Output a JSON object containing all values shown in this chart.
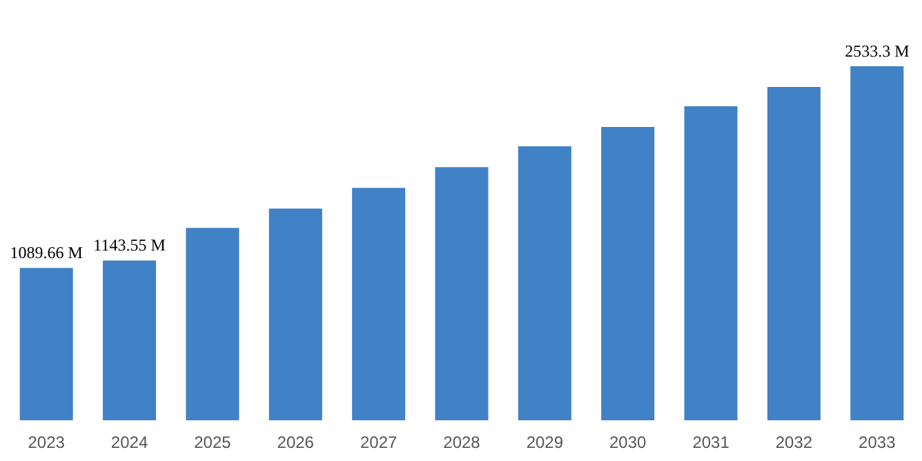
{
  "chart_data": {
    "type": "bar",
    "categories": [
      "2023",
      "2024",
      "2025",
      "2026",
      "2027",
      "2028",
      "2029",
      "2030",
      "2031",
      "2032",
      "2033"
    ],
    "values": [
      1089.66,
      1143.55,
      1376,
      1514,
      1663,
      1811,
      1960,
      2098,
      2247,
      2385,
      2533.3
    ],
    "value_labels": [
      "1089.66 M",
      "1143.55 M",
      null,
      null,
      null,
      null,
      null,
      null,
      null,
      null,
      "2533.3 M"
    ],
    "color": "#4181c6",
    "grid": false
  }
}
